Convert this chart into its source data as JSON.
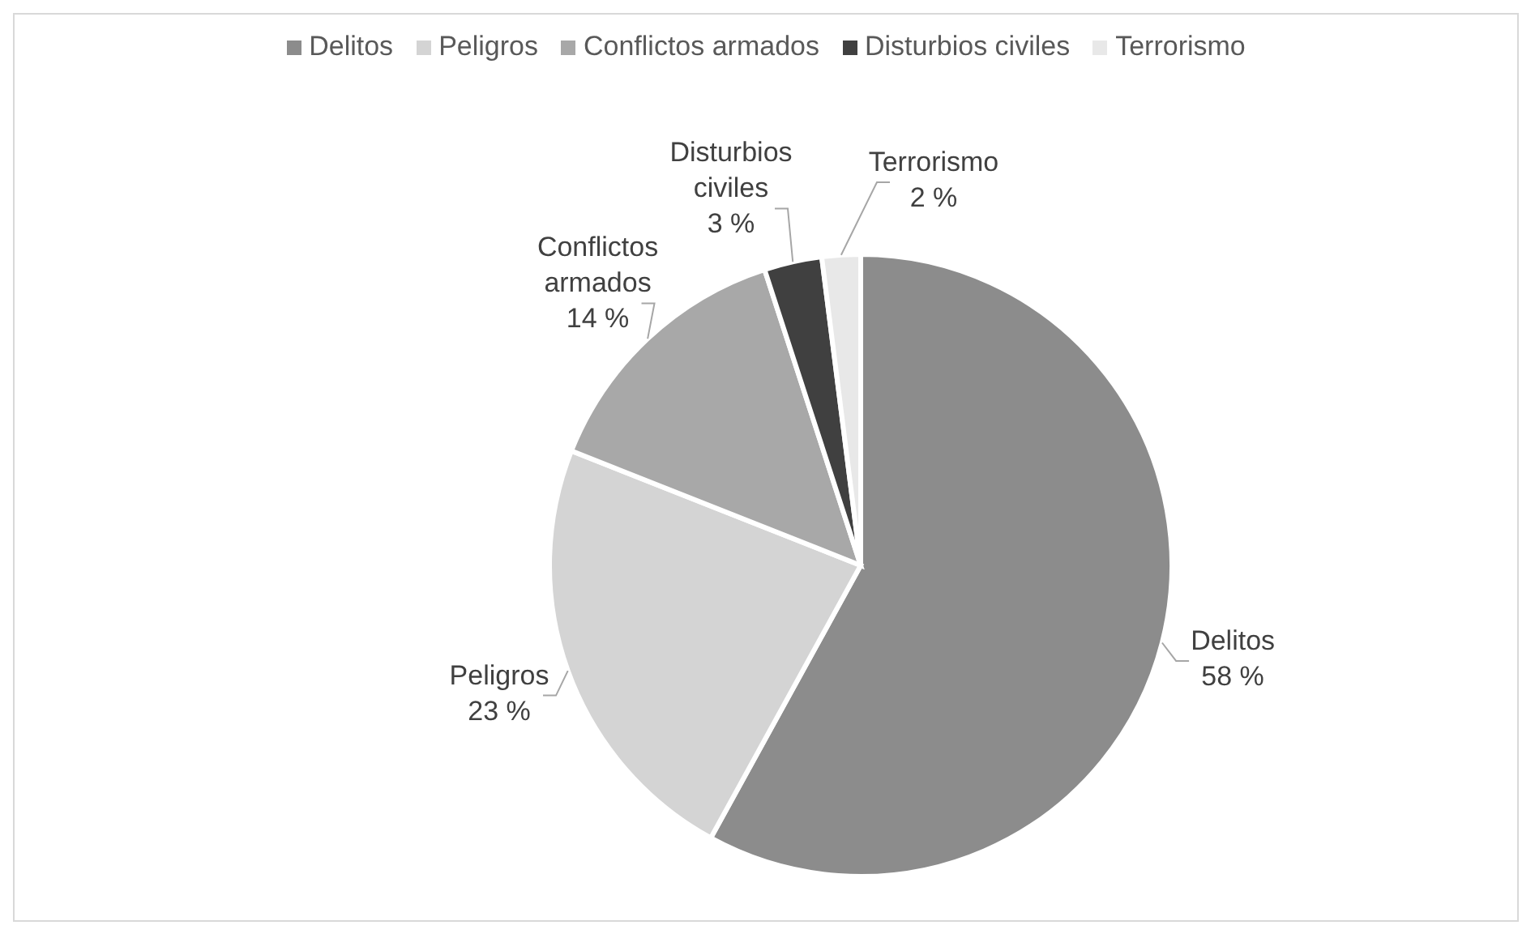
{
  "chart_data": {
    "type": "pie",
    "categories": [
      "Delitos",
      "Peligros",
      "Conflictos armados",
      "Disturbios civiles",
      "Terrorismo"
    ],
    "values": [
      58,
      23,
      14,
      3,
      2
    ],
    "value_labels": [
      "58 %",
      "23 %",
      "14 %",
      "3 %",
      "2 %"
    ],
    "colors": [
      "#8c8c8c",
      "#d4d4d4",
      "#a8a8a8",
      "#404040",
      "#e8e8e8"
    ],
    "legend": "top"
  }
}
